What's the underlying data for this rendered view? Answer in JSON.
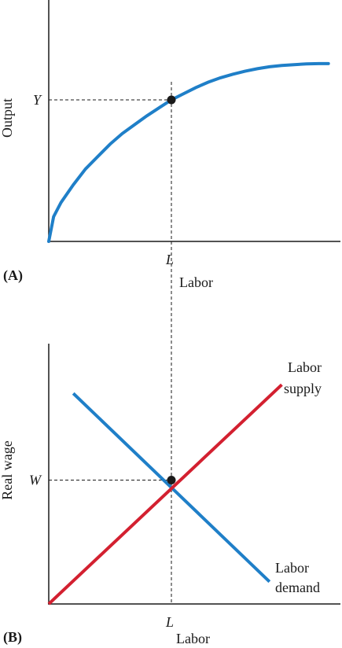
{
  "chart_data": [
    {
      "panel_label": "(A)",
      "type": "line",
      "xlabel": "Labor",
      "ylabel": "Output",
      "x_tick_label": "L",
      "y_tick_label": "Y",
      "equilibrium": {
        "x": 0.5,
        "y": 0.8
      },
      "curve": {
        "shape": "concave",
        "x": [
          0,
          0.02,
          0.05,
          0.1,
          0.15,
          0.2,
          0.25,
          0.3,
          0.35,
          0.4,
          0.45,
          0.5,
          0.55,
          0.6,
          0.65,
          0.7,
          0.75,
          0.8,
          0.85,
          0.9,
          0.95,
          1.0,
          1.05,
          1.1,
          1.14
        ],
        "y": [
          0,
          0.14,
          0.22,
          0.32,
          0.41,
          0.48,
          0.55,
          0.61,
          0.66,
          0.71,
          0.755,
          0.8,
          0.835,
          0.87,
          0.9,
          0.925,
          0.945,
          0.962,
          0.976,
          0.987,
          0.994,
          0.999,
          1.003,
          1.005,
          1.005
        ]
      },
      "colors": {
        "curve": "#1f7fc8"
      }
    },
    {
      "panel_label": "(B)",
      "type": "line",
      "xlabel": "Labor",
      "ylabel": "Real wage",
      "x_tick_label": "L",
      "y_tick_label": "W",
      "equilibrium": {
        "x": 0.5,
        "y": 0.5
      },
      "series": [
        {
          "name": "Labor demand",
          "label_lines": [
            "Labor",
            "demand"
          ],
          "color": "#1f7fc8",
          "x": [
            0.1,
            0.9
          ],
          "y": [
            0.85,
            0.09
          ]
        },
        {
          "name": "Labor supply",
          "label_lines": [
            "Labor",
            "supply"
          ],
          "color": "#d32030",
          "x": [
            0.0,
            0.95
          ],
          "y": [
            0.0,
            0.885
          ]
        }
      ]
    }
  ]
}
